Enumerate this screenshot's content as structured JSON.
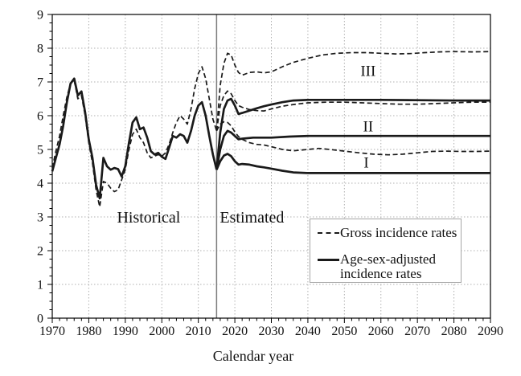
{
  "colors": {
    "line": "#1a1a1a",
    "grid": "#b0b0b0",
    "divider": "#7d7d7d",
    "frame": "#000000",
    "text": "#111111",
    "legend_border": "#a6a6a6"
  },
  "legend": {
    "items": [
      {
        "style": "dashed",
        "label_lines": [
          "Gross incidence rates"
        ]
      },
      {
        "style": "solid",
        "label_lines": [
          "Age-sex-adjusted",
          "incidence rates"
        ]
      }
    ]
  },
  "chart_data": {
    "type": "line",
    "title": "",
    "xlabel": "Calendar year",
    "ylabel": "",
    "xlim": [
      1970,
      2090
    ],
    "ylim": [
      0,
      9
    ],
    "x_tick_step": 10,
    "x_minor_step": 2,
    "y_tick_step": 1,
    "y_minor_step": 0.25,
    "x_tick_labels": [
      "1970",
      "1980",
      "1990",
      "2000",
      "2010",
      "2020",
      "2030",
      "2040",
      "2050",
      "2060",
      "2070",
      "2080",
      "2090"
    ],
    "y_tick_labels": [
      "0",
      "1",
      "2",
      "3",
      "4",
      "5",
      "6",
      "7",
      "8",
      "9"
    ],
    "grid": true,
    "divider_year": 2015,
    "legend_position": "lower right",
    "annotations": [
      {
        "text": "Historical",
        "x": 1996.4,
        "y": 3.0,
        "size": 20
      },
      {
        "text": "Estimated",
        "x": 2024.7,
        "y": 3.0,
        "size": 20
      },
      {
        "text": "III",
        "x": 2056.5,
        "y": 7.33,
        "size": 19
      },
      {
        "text": "II",
        "x": 2056.5,
        "y": 5.69,
        "size": 19
      },
      {
        "text": "I",
        "x": 2056.0,
        "y": 4.62,
        "size": 19
      }
    ],
    "series": [
      {
        "name": "Gross incidence rates — historical",
        "style": "dashed",
        "points": [
          [
            1970,
            4.45
          ],
          [
            1971,
            4.95
          ],
          [
            1972,
            5.4
          ],
          [
            1973,
            6.0
          ],
          [
            1974,
            6.55
          ],
          [
            1975,
            6.95
          ],
          [
            1976,
            7.05
          ],
          [
            1977,
            6.5
          ],
          [
            1978,
            6.6
          ],
          [
            1979,
            6.0
          ],
          [
            1980,
            5.2
          ],
          [
            1981,
            4.6
          ],
          [
            1982,
            3.8
          ],
          [
            1983,
            3.3
          ],
          [
            1984,
            4.05
          ],
          [
            1985,
            4.0
          ],
          [
            1986,
            3.85
          ],
          [
            1987,
            3.75
          ],
          [
            1988,
            3.8
          ],
          [
            1989,
            4.1
          ],
          [
            1990,
            4.4
          ],
          [
            1991,
            5.0
          ],
          [
            1992,
            5.45
          ],
          [
            1993,
            5.6
          ],
          [
            1994,
            5.35
          ],
          [
            1995,
            5.2
          ],
          [
            1996,
            4.9
          ],
          [
            1997,
            4.75
          ],
          [
            1998,
            4.8
          ],
          [
            1999,
            4.85
          ],
          [
            2000,
            4.8
          ],
          [
            2001,
            4.9
          ],
          [
            2002,
            5.15
          ],
          [
            2003,
            5.5
          ],
          [
            2004,
            5.8
          ],
          [
            2005,
            6.0
          ],
          [
            2006,
            5.9
          ],
          [
            2007,
            5.75
          ],
          [
            2008,
            6.2
          ],
          [
            2009,
            6.8
          ],
          [
            2010,
            7.25
          ],
          [
            2011,
            7.45
          ],
          [
            2012,
            7.1
          ],
          [
            2013,
            6.5
          ],
          [
            2014,
            5.9
          ],
          [
            2015,
            5.55
          ]
        ]
      },
      {
        "name": "Age-sex-adjusted incidence rates — historical",
        "style": "solid",
        "points": [
          [
            1970,
            4.35
          ],
          [
            1971,
            4.75
          ],
          [
            1972,
            5.15
          ],
          [
            1973,
            5.7
          ],
          [
            1974,
            6.4
          ],
          [
            1975,
            6.95
          ],
          [
            1976,
            7.1
          ],
          [
            1977,
            6.6
          ],
          [
            1978,
            6.72
          ],
          [
            1979,
            6.1
          ],
          [
            1980,
            5.3
          ],
          [
            1981,
            4.75
          ],
          [
            1982,
            3.95
          ],
          [
            1983,
            3.55
          ],
          [
            1984,
            4.75
          ],
          [
            1985,
            4.5
          ],
          [
            1986,
            4.4
          ],
          [
            1987,
            4.45
          ],
          [
            1988,
            4.42
          ],
          [
            1989,
            4.2
          ],
          [
            1990,
            4.5
          ],
          [
            1991,
            5.2
          ],
          [
            1992,
            5.8
          ],
          [
            1993,
            5.95
          ],
          [
            1994,
            5.6
          ],
          [
            1995,
            5.65
          ],
          [
            1996,
            5.35
          ],
          [
            1997,
            4.95
          ],
          [
            1998,
            4.85
          ],
          [
            1999,
            4.9
          ],
          [
            2000,
            4.78
          ],
          [
            2001,
            4.72
          ],
          [
            2002,
            5.05
          ],
          [
            2003,
            5.4
          ],
          [
            2004,
            5.35
          ],
          [
            2005,
            5.45
          ],
          [
            2006,
            5.4
          ],
          [
            2007,
            5.2
          ],
          [
            2008,
            5.55
          ],
          [
            2009,
            6.0
          ],
          [
            2010,
            6.3
          ],
          [
            2011,
            6.4
          ],
          [
            2012,
            6.0
          ],
          [
            2013,
            5.4
          ],
          [
            2014,
            4.85
          ],
          [
            2015,
            4.4
          ]
        ]
      },
      {
        "name": "Gross incidence rates — scenario III",
        "style": "dashed",
        "points": [
          [
            2015,
            5.55
          ],
          [
            2016,
            6.9
          ],
          [
            2017,
            7.55
          ],
          [
            2018,
            7.85
          ],
          [
            2019,
            7.8
          ],
          [
            2020,
            7.5
          ],
          [
            2021,
            7.28
          ],
          [
            2022,
            7.2
          ],
          [
            2024,
            7.28
          ],
          [
            2026,
            7.3
          ],
          [
            2028,
            7.27
          ],
          [
            2030,
            7.3
          ],
          [
            2033,
            7.45
          ],
          [
            2036,
            7.58
          ],
          [
            2040,
            7.7
          ],
          [
            2044,
            7.8
          ],
          [
            2048,
            7.85
          ],
          [
            2052,
            7.87
          ],
          [
            2056,
            7.87
          ],
          [
            2060,
            7.85
          ],
          [
            2064,
            7.83
          ],
          [
            2068,
            7.84
          ],
          [
            2072,
            7.87
          ],
          [
            2076,
            7.89
          ],
          [
            2080,
            7.9
          ],
          [
            2085,
            7.89
          ],
          [
            2090,
            7.9
          ]
        ]
      },
      {
        "name": "Gross incidence rates — scenario II",
        "style": "dashed",
        "points": [
          [
            2015,
            5.55
          ],
          [
            2016,
            6.3
          ],
          [
            2017,
            6.6
          ],
          [
            2018,
            6.73
          ],
          [
            2019,
            6.65
          ],
          [
            2020,
            6.45
          ],
          [
            2021,
            6.3
          ],
          [
            2022,
            6.25
          ],
          [
            2024,
            6.18
          ],
          [
            2026,
            6.15
          ],
          [
            2028,
            6.14
          ],
          [
            2030,
            6.2
          ],
          [
            2033,
            6.28
          ],
          [
            2036,
            6.33
          ],
          [
            2040,
            6.38
          ],
          [
            2045,
            6.4
          ],
          [
            2050,
            6.4
          ],
          [
            2055,
            6.38
          ],
          [
            2060,
            6.36
          ],
          [
            2065,
            6.34
          ],
          [
            2070,
            6.34
          ],
          [
            2075,
            6.36
          ],
          [
            2080,
            6.38
          ],
          [
            2085,
            6.4
          ],
          [
            2090,
            6.4
          ]
        ]
      },
      {
        "name": "Gross incidence rates — scenario I",
        "style": "dashed",
        "points": [
          [
            2015,
            5.55
          ],
          [
            2016,
            5.75
          ],
          [
            2017,
            5.82
          ],
          [
            2018,
            5.8
          ],
          [
            2019,
            5.7
          ],
          [
            2020,
            5.52
          ],
          [
            2021,
            5.38
          ],
          [
            2022,
            5.3
          ],
          [
            2024,
            5.2
          ],
          [
            2026,
            5.15
          ],
          [
            2028,
            5.13
          ],
          [
            2030,
            5.08
          ],
          [
            2033,
            5.0
          ],
          [
            2036,
            4.96
          ],
          [
            2040,
            5.0
          ],
          [
            2043,
            5.03
          ],
          [
            2046,
            5.0
          ],
          [
            2050,
            4.95
          ],
          [
            2054,
            4.9
          ],
          [
            2058,
            4.86
          ],
          [
            2062,
            4.84
          ],
          [
            2066,
            4.86
          ],
          [
            2070,
            4.9
          ],
          [
            2074,
            4.94
          ],
          [
            2078,
            4.95
          ],
          [
            2082,
            4.94
          ],
          [
            2086,
            4.94
          ],
          [
            2090,
            4.95
          ]
        ]
      },
      {
        "name": "Age-sex-adjusted incidence rates — scenario III",
        "style": "solid",
        "points": [
          [
            2015,
            4.4
          ],
          [
            2016,
            5.5
          ],
          [
            2017,
            6.2
          ],
          [
            2018,
            6.45
          ],
          [
            2019,
            6.5
          ],
          [
            2020,
            6.3
          ],
          [
            2021,
            6.05
          ],
          [
            2022,
            6.08
          ],
          [
            2024,
            6.15
          ],
          [
            2026,
            6.22
          ],
          [
            2028,
            6.28
          ],
          [
            2030,
            6.33
          ],
          [
            2033,
            6.4
          ],
          [
            2036,
            6.45
          ],
          [
            2040,
            6.47
          ],
          [
            2050,
            6.47
          ],
          [
            2060,
            6.47
          ],
          [
            2070,
            6.46
          ],
          [
            2080,
            6.45
          ],
          [
            2090,
            6.45
          ]
        ]
      },
      {
        "name": "Age-sex-adjusted incidence rates — scenario II",
        "style": "solid",
        "points": [
          [
            2015,
            4.4
          ],
          [
            2016,
            5.0
          ],
          [
            2017,
            5.4
          ],
          [
            2018,
            5.55
          ],
          [
            2019,
            5.5
          ],
          [
            2020,
            5.4
          ],
          [
            2021,
            5.3
          ],
          [
            2022,
            5.32
          ],
          [
            2025,
            5.35
          ],
          [
            2030,
            5.35
          ],
          [
            2035,
            5.38
          ],
          [
            2040,
            5.4
          ],
          [
            2050,
            5.4
          ],
          [
            2060,
            5.4
          ],
          [
            2070,
            5.4
          ],
          [
            2080,
            5.4
          ],
          [
            2090,
            5.4
          ]
        ]
      },
      {
        "name": "Age-sex-adjusted incidence rates — scenario I",
        "style": "solid",
        "points": [
          [
            2015,
            4.4
          ],
          [
            2016,
            4.65
          ],
          [
            2017,
            4.82
          ],
          [
            2018,
            4.87
          ],
          [
            2019,
            4.8
          ],
          [
            2020,
            4.65
          ],
          [
            2021,
            4.55
          ],
          [
            2022,
            4.57
          ],
          [
            2024,
            4.55
          ],
          [
            2026,
            4.5
          ],
          [
            2028,
            4.47
          ],
          [
            2030,
            4.43
          ],
          [
            2033,
            4.37
          ],
          [
            2036,
            4.32
          ],
          [
            2040,
            4.3
          ],
          [
            2050,
            4.3
          ],
          [
            2060,
            4.3
          ],
          [
            2070,
            4.3
          ],
          [
            2080,
            4.3
          ],
          [
            2090,
            4.3
          ]
        ]
      }
    ]
  }
}
